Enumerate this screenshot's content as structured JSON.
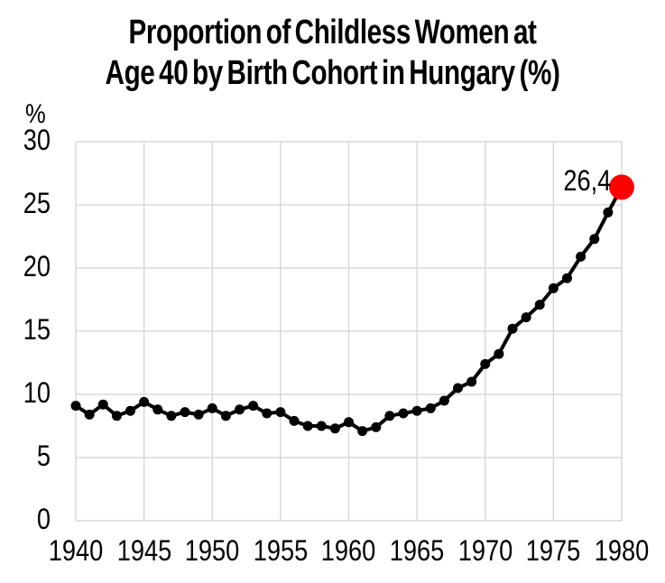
{
  "title": {
    "line1": "Proportion of Childless Women at",
    "line2": "Age 40 by Birth Cohort in Hungary (%)"
  },
  "y_axis": {
    "unit_label": "%",
    "ticks": [
      "30",
      "25",
      "20",
      "15",
      "10",
      "5",
      "0"
    ]
  },
  "x_axis": {
    "ticks": [
      "1940",
      "1945",
      "1950",
      "1955",
      "1960",
      "1965",
      "1970",
      "1975",
      "1980"
    ]
  },
  "annotation": {
    "last_value_label": "26,4"
  },
  "colors": {
    "series": "#000000",
    "highlight": "#ff0000",
    "gridline": "#d9d9d9",
    "text": "#000000",
    "background": "#ffffff"
  },
  "chart_data": {
    "type": "line",
    "title": "Proportion of Childless Women at Age 40 by Birth Cohort in Hungary (%)",
    "xlabel": "",
    "ylabel": "%",
    "x": [
      1940,
      1941,
      1942,
      1943,
      1944,
      1945,
      1946,
      1947,
      1948,
      1949,
      1950,
      1951,
      1952,
      1953,
      1954,
      1955,
      1956,
      1957,
      1958,
      1959,
      1960,
      1961,
      1962,
      1963,
      1964,
      1965,
      1966,
      1967,
      1968,
      1969,
      1970,
      1971,
      1972,
      1973,
      1974,
      1975,
      1976,
      1977,
      1978,
      1979,
      1980
    ],
    "values": [
      9.1,
      8.4,
      9.2,
      8.3,
      8.7,
      9.4,
      8.8,
      8.3,
      8.6,
      8.4,
      8.9,
      8.3,
      8.8,
      9.1,
      8.5,
      8.6,
      7.9,
      7.5,
      7.5,
      7.3,
      7.8,
      7.1,
      7.4,
      8.3,
      8.5,
      8.7,
      8.9,
      9.5,
      10.5,
      11.0,
      12.4,
      13.2,
      15.2,
      16.1,
      17.1,
      18.4,
      19.2,
      20.9,
      22.3,
      24.4,
      26.4
    ],
    "xlim": [
      1940,
      1980
    ],
    "ylim": [
      0,
      30
    ],
    "x_tick_step": 5,
    "y_tick_step": 5,
    "grid": true,
    "legend": "none",
    "marker": "circle",
    "highlight_last_point": true,
    "last_point_label": "26,4"
  }
}
